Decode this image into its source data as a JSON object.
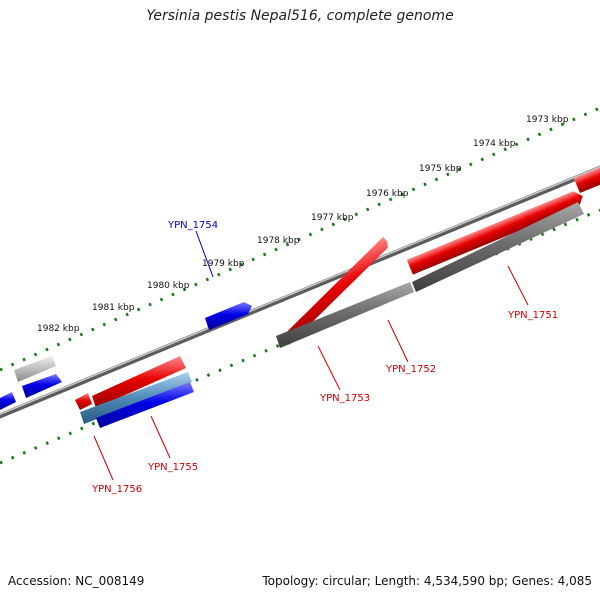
{
  "title": "Yersinia pestis Nepal516, complete genome",
  "accession_text": "Accession: NC_008149",
  "summary_text": "Topology: circular; Length: 4,534,590 bp; Genes: 4,085",
  "colors": {
    "forward_gene": "#e00000",
    "reverse_gene": "#0000e0",
    "gray_feature": "#707070",
    "light_gray_feature": "#b8b8b8",
    "steel_blue_feature": "#4f8ab8",
    "backbone": "#808080",
    "tick_green": "#1a7a1a",
    "label_red": "#cc0000",
    "label_blue": "#0000cc"
  },
  "scale_labels": [
    "1973 kbp",
    "1974 kbp",
    "1975 kbp",
    "1976 kbp",
    "1977 kbp",
    "1978 kbp",
    "1979 kbp",
    "1980 kbp",
    "1981 kbp",
    "1982 kbp"
  ],
  "gene_labels": [
    {
      "name": "YPN_1751",
      "color": "red"
    },
    {
      "name": "YPN_1752",
      "color": "red"
    },
    {
      "name": "YPN_1753",
      "color": "red"
    },
    {
      "name": "YPN_1754",
      "color": "blue"
    },
    {
      "name": "YPN_1755",
      "color": "red"
    },
    {
      "name": "YPN_1756",
      "color": "red"
    }
  ]
}
